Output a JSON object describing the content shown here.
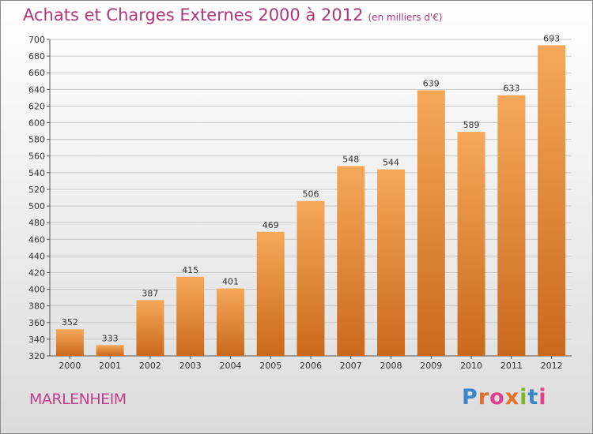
{
  "page": {
    "title": "Achats et Charges Externes 2000 à 2012",
    "subtitle": "(en milliers d'€)",
    "commune": "MARLENHEIM",
    "brand": {
      "text": "Proxiti",
      "letter_colors": [
        "#3a86c8",
        "#e0702a",
        "#e04090",
        "#e0702a",
        "#7ab82e",
        "#3a86c8",
        "#e04090"
      ]
    }
  },
  "chart_data": {
    "type": "bar",
    "title": "Achats et Charges Externes 2000 à 2012",
    "subtitle": "(en milliers d'€)",
    "categories": [
      "2000",
      "2001",
      "2002",
      "2003",
      "2004",
      "2005",
      "2006",
      "2007",
      "2008",
      "2009",
      "2010",
      "2011",
      "2012"
    ],
    "values": [
      352,
      333,
      387,
      415,
      401,
      469,
      506,
      548,
      544,
      639,
      589,
      633,
      693
    ],
    "ylim": [
      320,
      700
    ],
    "yticks": [
      320,
      340,
      360,
      380,
      400,
      420,
      440,
      460,
      480,
      500,
      520,
      540,
      560,
      580,
      600,
      620,
      640,
      660,
      680,
      700
    ],
    "grid": true,
    "data_labels": true,
    "colors": {
      "bar_top": "#f6a85a",
      "bar_bottom": "#c9691c",
      "grid": "#c8c8c8",
      "axis": "#555555",
      "title": "#b0367c"
    }
  }
}
